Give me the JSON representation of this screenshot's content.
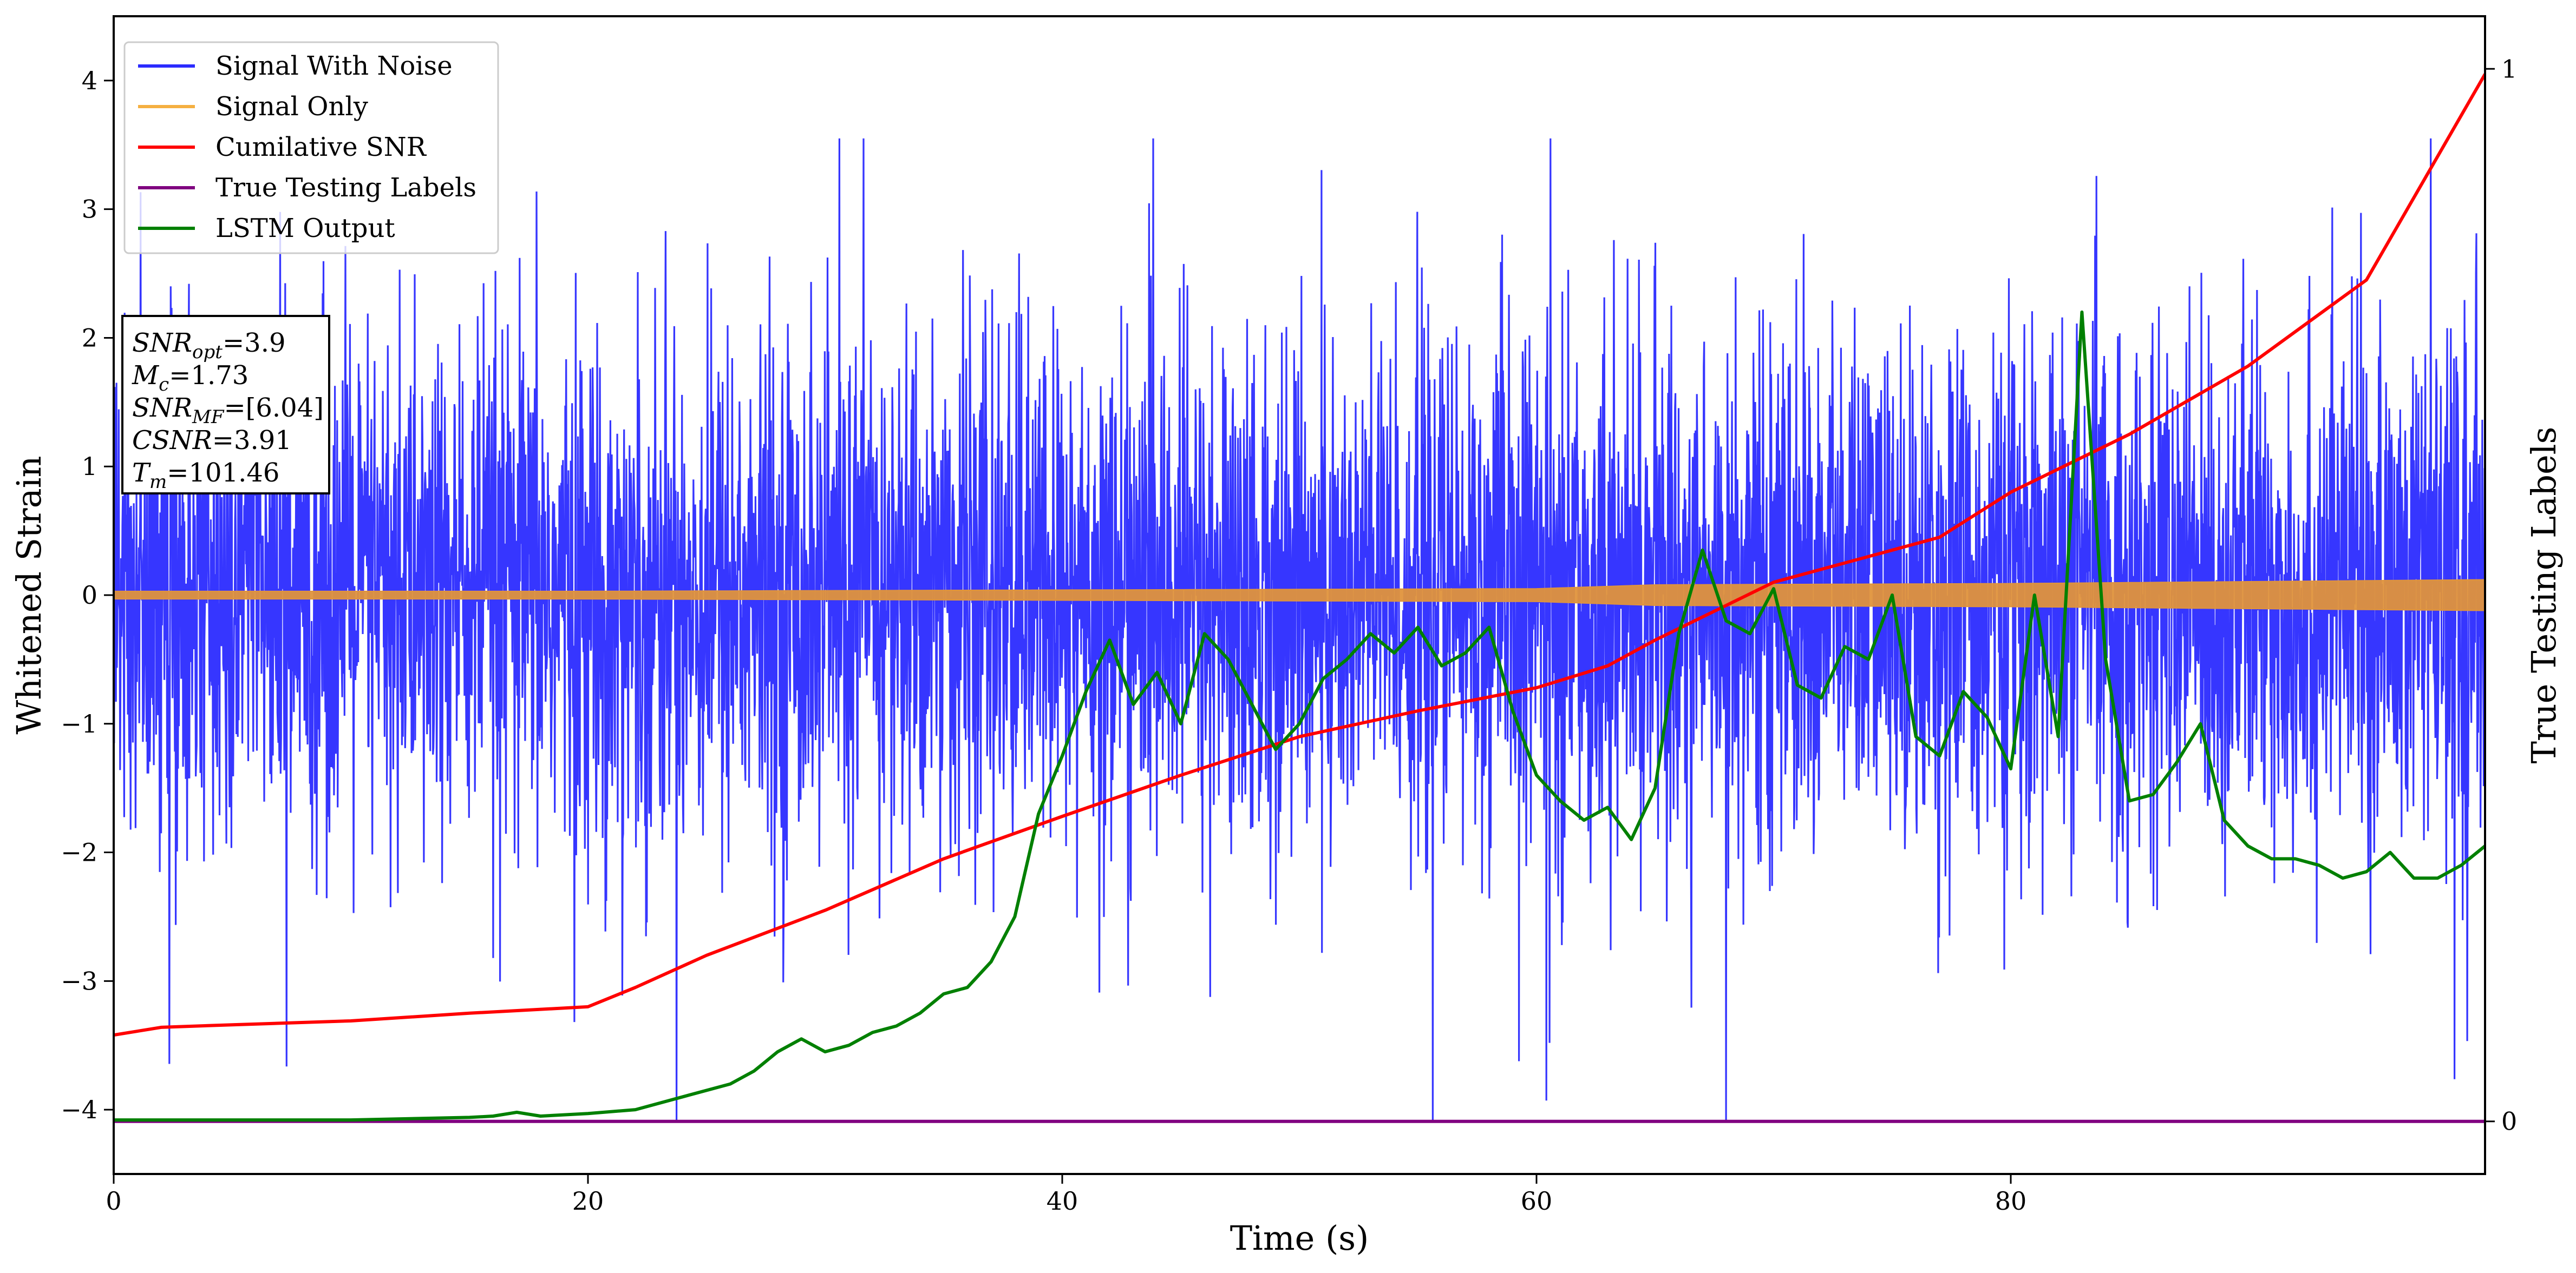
{
  "chart_data": {
    "type": "line",
    "xlabel": "Time (s)",
    "ylabel": "Whitened Strain",
    "y2label": "True Testing Labels",
    "xlim": [
      0,
      100
    ],
    "ylim": [
      -4.5,
      4.5
    ],
    "y2lim": [
      -0.05,
      1.05
    ],
    "xticks": [
      "0",
      "20",
      "40",
      "60",
      "80"
    ],
    "yticks": [
      "−4",
      "−3",
      "−2",
      "−1",
      "0",
      "1",
      "2",
      "3",
      "4"
    ],
    "y2ticks": [
      "0",
      "1"
    ],
    "legend": {
      "placement": "upper-left",
      "entries": [
        {
          "label": "Signal With Noise",
          "color": "#2b2bff"
        },
        {
          "label": "Signal Only",
          "color": "#f5b041"
        },
        {
          "label": "Cumilative SNR",
          "color": "#ff0000"
        },
        {
          "label": "True Testing Labels",
          "color": "#800080"
        },
        {
          "label": "LSTM Output",
          "color": "#008000"
        }
      ]
    },
    "info_box": [
      {
        "name": "SNR",
        "sub": "opt",
        "value": "=3.9"
      },
      {
        "name": "M",
        "sub": "c",
        "value": "=1.73"
      },
      {
        "name": "SNR",
        "sub": "MF",
        "value": "=[6.04]"
      },
      {
        "name": "CSNR",
        "sub": "",
        "value": "=3.91"
      },
      {
        "name": "T",
        "sub": "m",
        "value": "=101.46"
      }
    ],
    "series": [
      {
        "name": "Signal With Noise",
        "color": "#2b2bff",
        "style": "dense-noise",
        "approx_range": [
          -4.1,
          3.55
        ],
        "typical_spread": [
          -2.3,
          2.3
        ]
      },
      {
        "name": "Signal Only",
        "color": "#e0943c",
        "style": "oscillation-envelope",
        "envelope": {
          "x": [
            0,
            20,
            40,
            60,
            65,
            80,
            100
          ],
          "amplitude": [
            0.03,
            0.03,
            0.04,
            0.05,
            0.08,
            0.09,
            0.12
          ]
        }
      },
      {
        "name": "Cumilative SNR",
        "color": "#ff0000",
        "axis": "y",
        "x": [
          0,
          2,
          5,
          10,
          15,
          20,
          22,
          25,
          30,
          35,
          40,
          45,
          50,
          55,
          60,
          63,
          65,
          70,
          75,
          77,
          80,
          85,
          90,
          95,
          100
        ],
        "y": [
          -3.42,
          -3.36,
          -3.34,
          -3.31,
          -3.25,
          -3.2,
          -3.05,
          -2.8,
          -2.45,
          -2.05,
          -1.72,
          -1.4,
          -1.1,
          -0.9,
          -0.72,
          -0.55,
          -0.35,
          0.1,
          0.35,
          0.45,
          0.8,
          1.25,
          1.78,
          2.45,
          4.05
        ]
      },
      {
        "name": "True Testing Labels",
        "color": "#800080",
        "axis": "y2",
        "x": [
          0,
          100
        ],
        "y": [
          0,
          0
        ]
      },
      {
        "name": "LSTM Output",
        "color": "#008000",
        "axis": "y",
        "x": [
          0,
          10,
          15,
          16,
          17,
          18,
          20,
          22,
          24,
          26,
          27,
          28,
          29,
          30,
          31,
          32,
          33,
          34,
          35,
          36,
          37,
          38,
          39,
          40,
          41,
          42,
          43,
          44,
          45,
          46,
          47,
          48,
          49,
          50,
          51,
          52,
          53,
          54,
          55,
          56,
          57,
          58,
          59,
          60,
          61,
          62,
          63,
          64,
          65,
          66,
          67,
          68,
          69,
          70,
          71,
          72,
          73,
          74,
          75,
          76,
          77,
          78,
          79,
          80,
          81,
          82,
          83,
          84,
          85,
          86,
          87,
          88,
          89,
          90,
          91,
          92,
          93,
          94,
          95,
          96,
          97,
          98,
          99,
          100
        ],
        "y": [
          -4.08,
          -4.08,
          -4.06,
          -4.05,
          -4.02,
          -4.05,
          -4.03,
          -4.0,
          -3.9,
          -3.8,
          -3.7,
          -3.55,
          -3.45,
          -3.55,
          -3.5,
          -3.4,
          -3.35,
          -3.25,
          -3.1,
          -3.05,
          -2.85,
          -2.5,
          -1.7,
          -1.25,
          -0.75,
          -0.35,
          -0.85,
          -0.6,
          -1.0,
          -0.3,
          -0.5,
          -0.85,
          -1.2,
          -1.0,
          -0.65,
          -0.5,
          -0.3,
          -0.45,
          -0.25,
          -0.55,
          -0.45,
          -0.25,
          -0.9,
          -1.4,
          -1.6,
          -1.75,
          -1.65,
          -1.9,
          -1.5,
          -0.3,
          0.35,
          -0.2,
          -0.3,
          0.05,
          -0.7,
          -0.8,
          -0.4,
          -0.5,
          0.0,
          -1.1,
          -1.25,
          -0.75,
          -0.95,
          -1.35,
          0.0,
          -1.1,
          2.2,
          -0.5,
          -1.6,
          -1.55,
          -1.3,
          -1.0,
          -1.75,
          -1.95,
          -2.05,
          -2.05,
          -2.1,
          -2.2,
          -2.15,
          -2.0,
          -2.2,
          -2.2,
          -2.1,
          -1.95
        ]
      }
    ]
  }
}
